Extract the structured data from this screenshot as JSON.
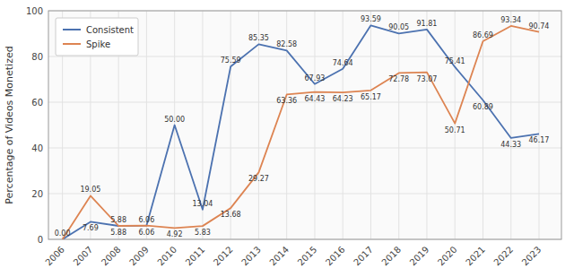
{
  "chart_data": {
    "type": "line",
    "y_label": "Percentage of Videos Monetized",
    "x": [
      2006,
      2007,
      2008,
      2009,
      2010,
      2011,
      2012,
      2013,
      2014,
      2015,
      2016,
      2017,
      2018,
      2019,
      2020,
      2021,
      2022,
      2023
    ],
    "series": [
      {
        "name": "Consistent",
        "color": "#4c72b0",
        "values": [
          0.0,
          7.69,
          5.88,
          6.06,
          50.0,
          13.04,
          75.59,
          85.35,
          82.58,
          67.93,
          74.64,
          93.59,
          90.05,
          91.81,
          75.41,
          60.89,
          44.33,
          46.17
        ],
        "value_labels": [
          "0.00",
          "7.69",
          "5.88",
          "6.06",
          "50.00",
          "13.04",
          "75.59",
          "85.35",
          "82.58",
          "67.93",
          "74.64",
          "93.59",
          "90.05",
          "91.81",
          "75.41",
          "60.89",
          "44.33",
          "46.17"
        ]
      },
      {
        "name": "Spike",
        "color": "#dd8452",
        "values": [
          0.0,
          19.05,
          5.88,
          6.06,
          4.92,
          5.83,
          13.68,
          29.27,
          63.36,
          64.43,
          64.23,
          65.17,
          72.78,
          73.07,
          50.71,
          86.69,
          93.34,
          90.74
        ],
        "value_labels": [
          null,
          "19.05",
          "5.88",
          "6.06",
          "4.92",
          "5.83",
          "13.68",
          "29.27",
          "63.36",
          "64.43",
          "64.23",
          "65.17",
          "72.78",
          "73.07",
          "50.71",
          "86.69",
          "93.34",
          "90.74"
        ]
      }
    ],
    "xlim": [
      2005.5,
      2023.8
    ],
    "xticks": [
      2006,
      2007,
      2008,
      2009,
      2010,
      2011,
      2012,
      2013,
      2014,
      2015,
      2016,
      2017,
      2018,
      2019,
      2020,
      2021,
      2022,
      2023
    ],
    "ylim": [
      0,
      100
    ],
    "yticks": [
      0,
      20,
      40,
      60,
      80,
      100
    ],
    "grid": true,
    "legend": "upper left",
    "data_labels": true
  }
}
